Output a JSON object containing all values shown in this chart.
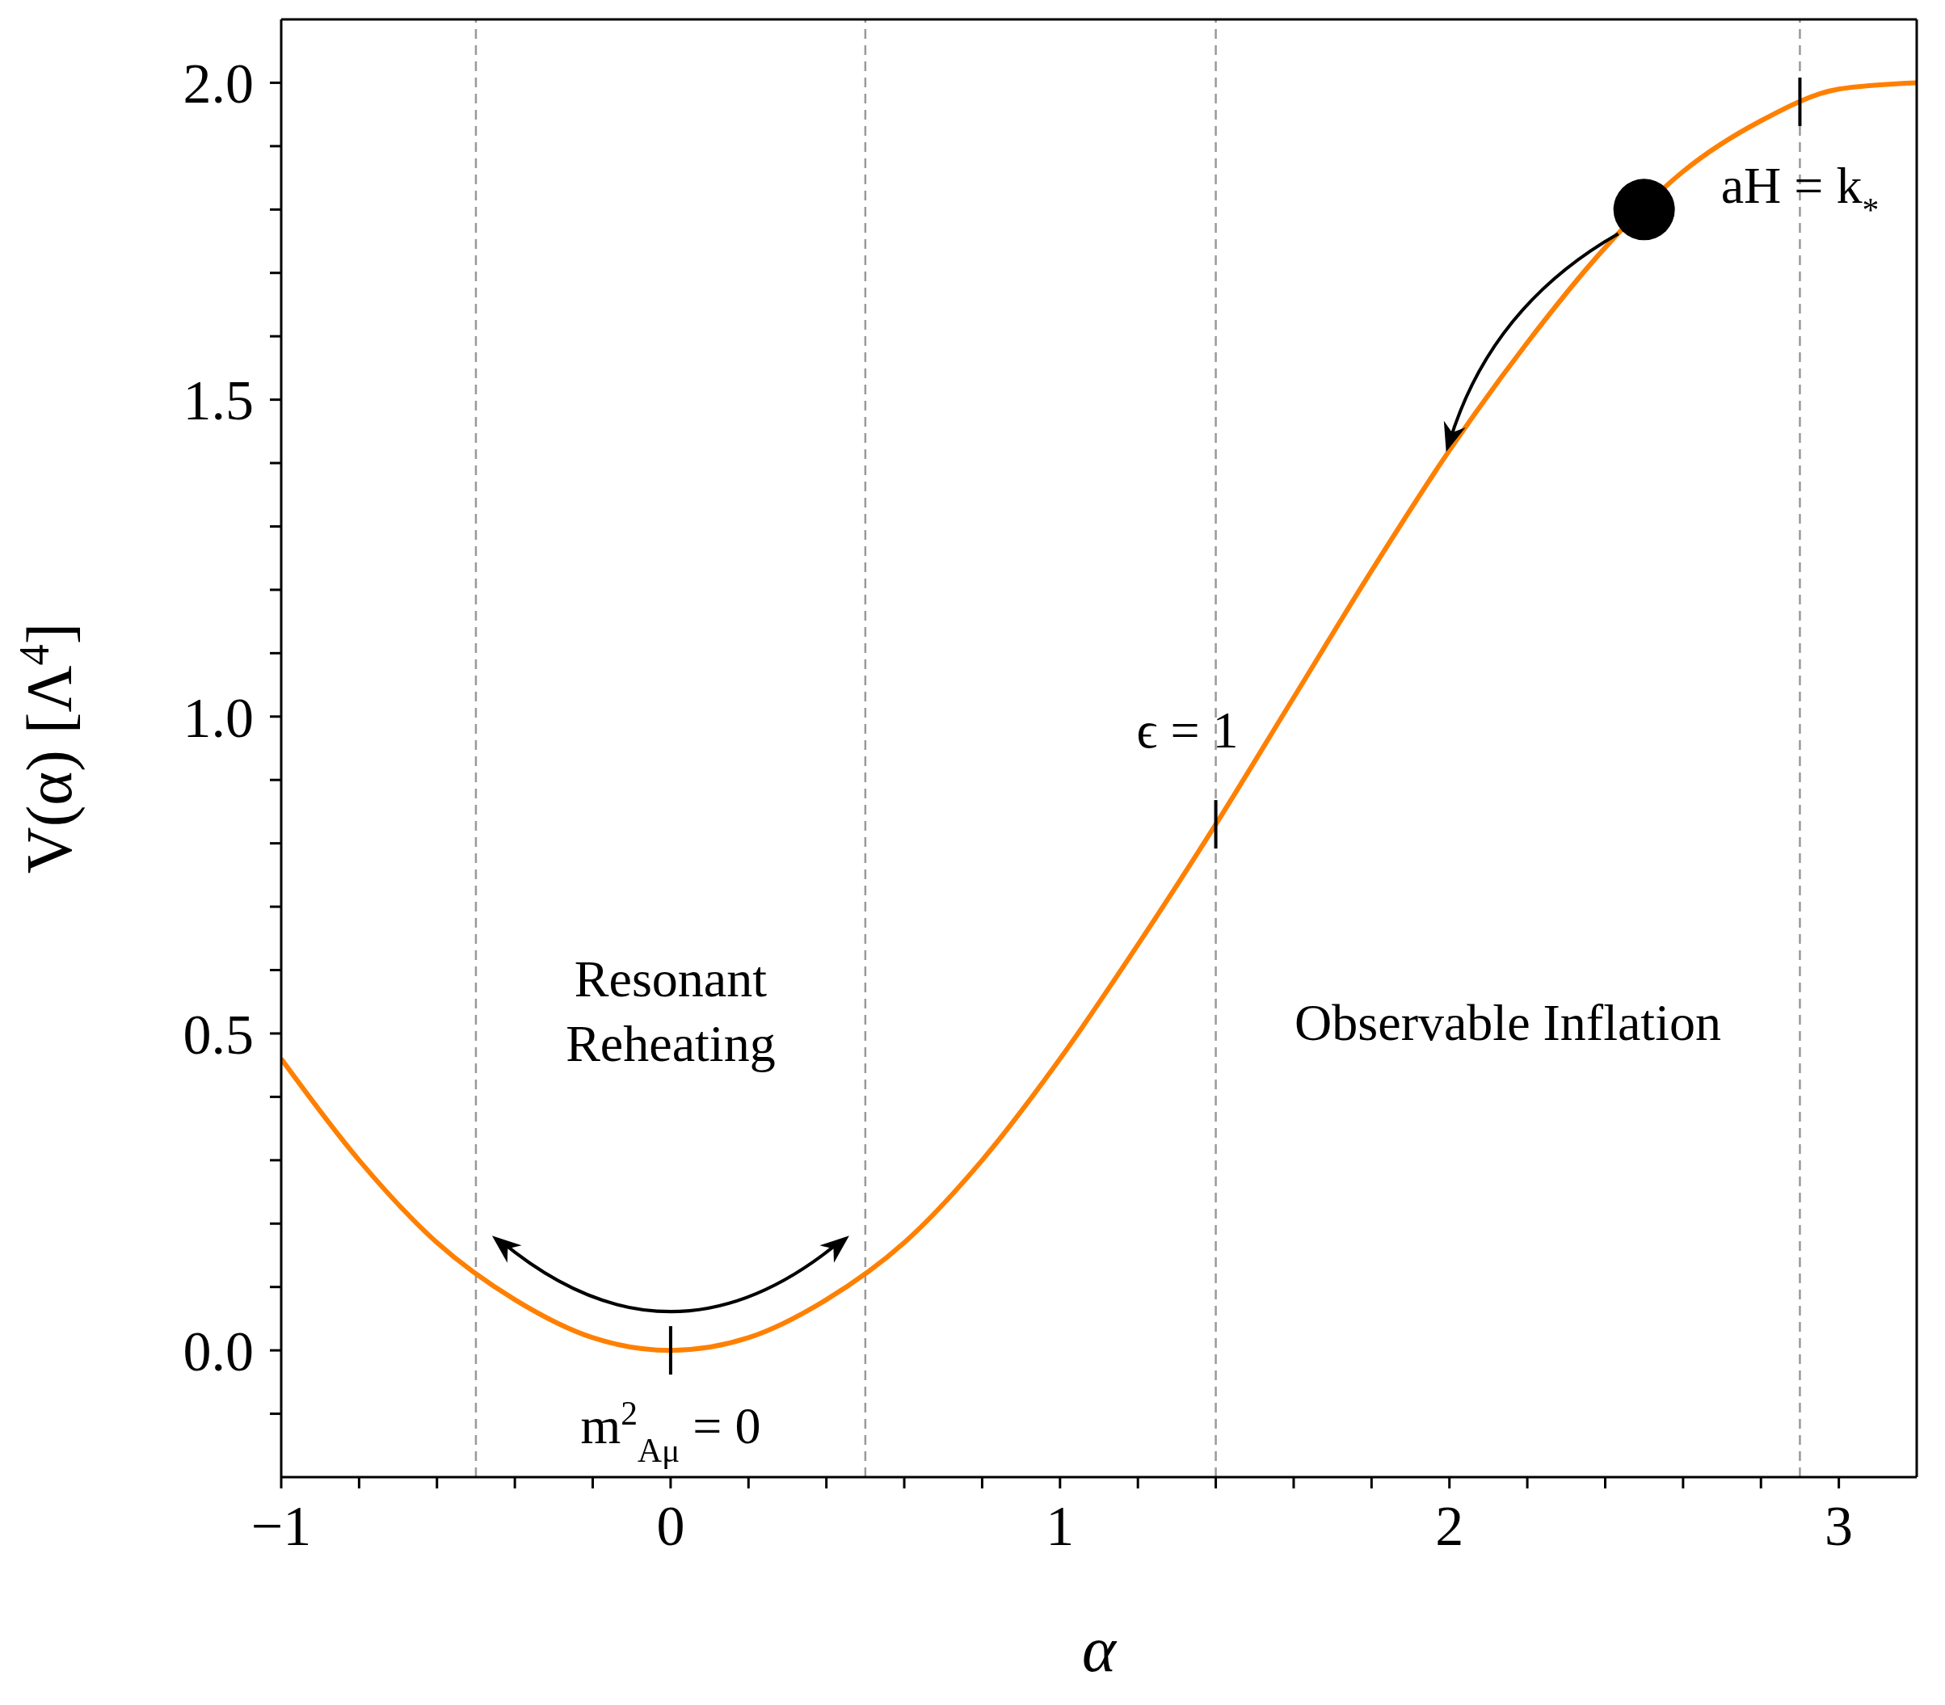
{
  "chart_data": {
    "type": "line",
    "xlabel": "α",
    "ylabel": "V(α) [Λ$^{4}$]",
    "xlim": [
      -1,
      3.2
    ],
    "ylim": [
      -0.2,
      2.1
    ],
    "xticks": [
      {
        "value": -1,
        "label": "−1"
      },
      {
        "value": -0.8,
        "label": null
      },
      {
        "value": -0.6,
        "label": null
      },
      {
        "value": -0.4,
        "label": null
      },
      {
        "value": -0.2,
        "label": null
      },
      0,
      {
        "value": 0.2,
        "label": null
      },
      {
        "value": 0.4,
        "label": null
      },
      {
        "value": 0.6,
        "label": null
      },
      {
        "value": 0.8,
        "label": null
      },
      1,
      {
        "value": 1.2,
        "label": null
      },
      {
        "value": 1.4,
        "label": null
      },
      {
        "value": 1.6,
        "label": null
      },
      {
        "value": 1.8,
        "label": null
      },
      2,
      {
        "value": 2.2,
        "label": null
      },
      {
        "value": 2.4,
        "label": null
      },
      {
        "value": 2.6,
        "label": null
      },
      {
        "value": 2.8,
        "label": null
      },
      3
    ],
    "yticks": [
      {
        "value": -0.1,
        "label": null
      },
      {
        "value": 0,
        "label": "0.0"
      },
      {
        "value": 0.1,
        "label": null
      },
      {
        "value": 0.2,
        "label": null
      },
      {
        "value": 0.3,
        "label": null
      },
      {
        "value": 0.4,
        "label": null
      },
      {
        "value": 0.5,
        "label": "0.5"
      },
      {
        "value": 0.6,
        "label": null
      },
      {
        "value": 0.7,
        "label": null
      },
      {
        "value": 0.8,
        "label": null
      },
      {
        "value": 0.9,
        "label": null
      },
      {
        "value": 1,
        "label": "1.0"
      },
      {
        "value": 1.1,
        "label": null
      },
      {
        "value": 1.2,
        "label": null
      },
      {
        "value": 1.3,
        "label": null
      },
      {
        "value": 1.4,
        "label": null
      },
      {
        "value": 1.5,
        "label": "1.5"
      },
      {
        "value": 1.6,
        "label": null
      },
      {
        "value": 1.7,
        "label": null
      },
      {
        "value": 1.8,
        "label": null
      },
      {
        "value": 1.9,
        "label": null
      },
      {
        "value": 2,
        "label": "2.0"
      }
    ],
    "series": [
      {
        "color": "#ff8000",
        "x": [
          -1,
          -0.8,
          -0.6,
          -0.4,
          -0.2,
          0,
          0.2,
          0.4,
          0.6,
          0.8,
          1,
          1.2,
          1.4,
          1.6,
          1.8,
          2,
          2.2,
          2.4,
          2.6,
          2.8,
          3,
          3.2
        ],
        "values": [
          0.46,
          0.3,
          0.17,
          0.08,
          0.02,
          0,
          0.02,
          0.08,
          0.17,
          0.3,
          0.46,
          0.64,
          0.83,
          1.03,
          1.23,
          1.42,
          1.59,
          1.74,
          1.86,
          1.94,
          1.99,
          2.0
        ]
      },
      {
        "type": "scatter",
        "color": "#000000",
        "marker": "circle",
        "x": [
          2.5
        ],
        "values": [
          1.8
        ]
      }
    ],
    "ref_lines": [
      {
        "axis": "x",
        "value": -0.5,
        "color": "#999999",
        "line_style": "dashed"
      },
      {
        "axis": "x",
        "value": 0.5,
        "color": "#999999",
        "line_style": "dashed"
      },
      {
        "axis": "x",
        "value": 1.4,
        "color": "#999999",
        "line_style": "dashed"
      },
      {
        "axis": "x",
        "value": 2.9,
        "color": "#999999",
        "line_style": "dashed"
      }
    ],
    "annotations": [
      {
        "text": "m$^{2}$$_{Aμ}$ = 0",
        "x": 0,
        "y": 0
      },
      {
        "text": "ϵ = 1",
        "x": 1.4,
        "y": 0.83
      },
      {
        "text": "aH = k$_{*}$",
        "x": 2.9,
        "y": 1.97
      },
      "Resonant\nReheating",
      "Observable Inflation"
    ],
    "grid": false,
    "legend": false
  }
}
